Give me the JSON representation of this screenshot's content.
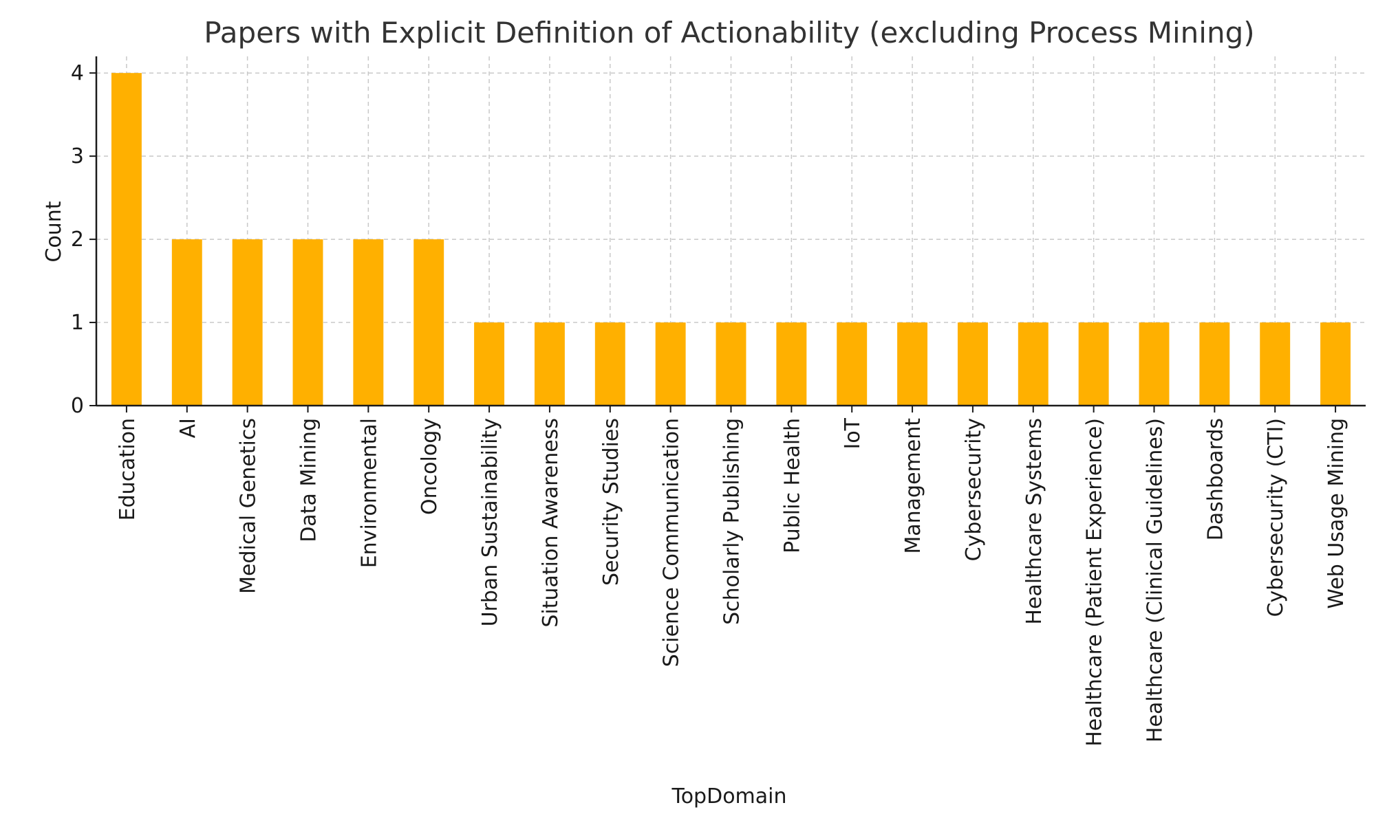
{
  "chart_data": {
    "type": "bar",
    "title": "Papers with Explicit Definition of Actionability (excluding Process Mining)",
    "xlabel": "TopDomain",
    "ylabel": "Count",
    "ylim": [
      0,
      4.2
    ],
    "yticks": [
      0,
      1,
      2,
      3,
      4
    ],
    "grid": true,
    "bar_color": "#FFB000",
    "categories": [
      "Education",
      "AI",
      "Medical Genetics",
      "Data Mining",
      "Environmental",
      "Oncology",
      "Urban Sustainability",
      "Situation Awareness",
      "Security Studies",
      "Science Communication",
      "Scholarly Publishing",
      "Public Health",
      "IoT",
      "Management",
      "Cybersecurity",
      "Healthcare Systems",
      "Healthcare (Patient Experience)",
      "Healthcare (Clinical Guidelines)",
      "Dashboards",
      "Cybersecurity (CTI)",
      "Web Usage Mining"
    ],
    "values": [
      4,
      2,
      2,
      2,
      2,
      2,
      1,
      1,
      1,
      1,
      1,
      1,
      1,
      1,
      1,
      1,
      1,
      1,
      1,
      1,
      1
    ]
  }
}
